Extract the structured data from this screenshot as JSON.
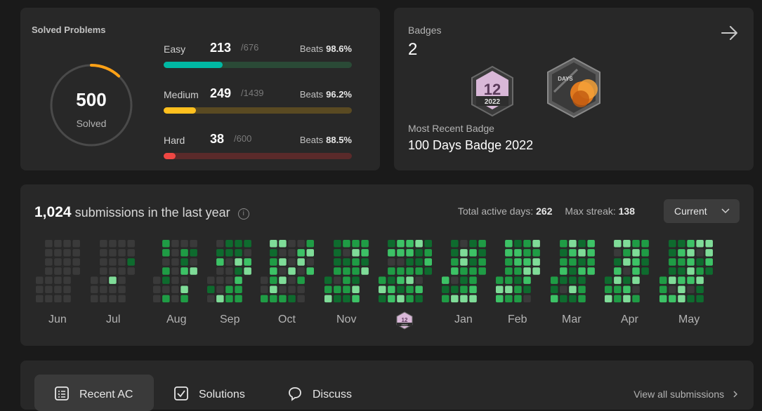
{
  "solved": {
    "title": "Solved Problems",
    "total": "500",
    "total_label": "Solved",
    "ring_fraction": 0.12,
    "difficulties": [
      {
        "name": "Easy",
        "solved": "213",
        "total": "/676",
        "beats_label": "Beats",
        "beats": "98.6%",
        "fraction": 0.315,
        "color": "#00b8a3",
        "track": "#2a4a36"
      },
      {
        "name": "Medium",
        "solved": "249",
        "total": "/1439",
        "beats_label": "Beats",
        "beats": "96.2%",
        "fraction": 0.173,
        "color": "#ffc01e",
        "track": "#5a4a22"
      },
      {
        "name": "Hard",
        "solved": "38",
        "total": "/600",
        "beats_label": "Beats",
        "beats": "88.5%",
        "fraction": 0.063,
        "color": "#ef4743",
        "track": "#5a2a2a"
      }
    ]
  },
  "badges": {
    "title": "Badges",
    "count": "2",
    "badge1_number": "12",
    "badge1_year": "2022",
    "badge2_text": "DAYS",
    "recent_label": "Most Recent Badge",
    "recent_name": "100 Days Badge 2022"
  },
  "submissions": {
    "count": "1,024",
    "text": "submissions in the last year",
    "info_icon": "i",
    "active_days_label": "Total active days:",
    "active_days": "262",
    "max_streak_label": "Max streak:",
    "max_streak": "138",
    "select_value": "Current",
    "months": [
      "Jun",
      "Jul",
      "Aug",
      "Sep",
      "Oct",
      "Nov",
      "Jan",
      "Feb",
      "Mar",
      "Apr",
      "May"
    ],
    "dec_badge_number": "12",
    "dec_badge_year": "2022"
  },
  "bottom": {
    "tabs": [
      {
        "label": "Recent AC",
        "icon": "list-icon"
      },
      {
        "label": "Solutions",
        "icon": "solution-icon"
      },
      {
        "label": "Discuss",
        "icon": "discuss-icon"
      }
    ],
    "view_all": "View all submissions"
  },
  "colors": {
    "bg": "#1a1a1a",
    "card": "#282828",
    "empty_cell": "#3a3a3a",
    "green_levels": [
      "#0e6b2e",
      "#1f9c45",
      "#3dc266",
      "#7fdc98"
    ]
  }
}
